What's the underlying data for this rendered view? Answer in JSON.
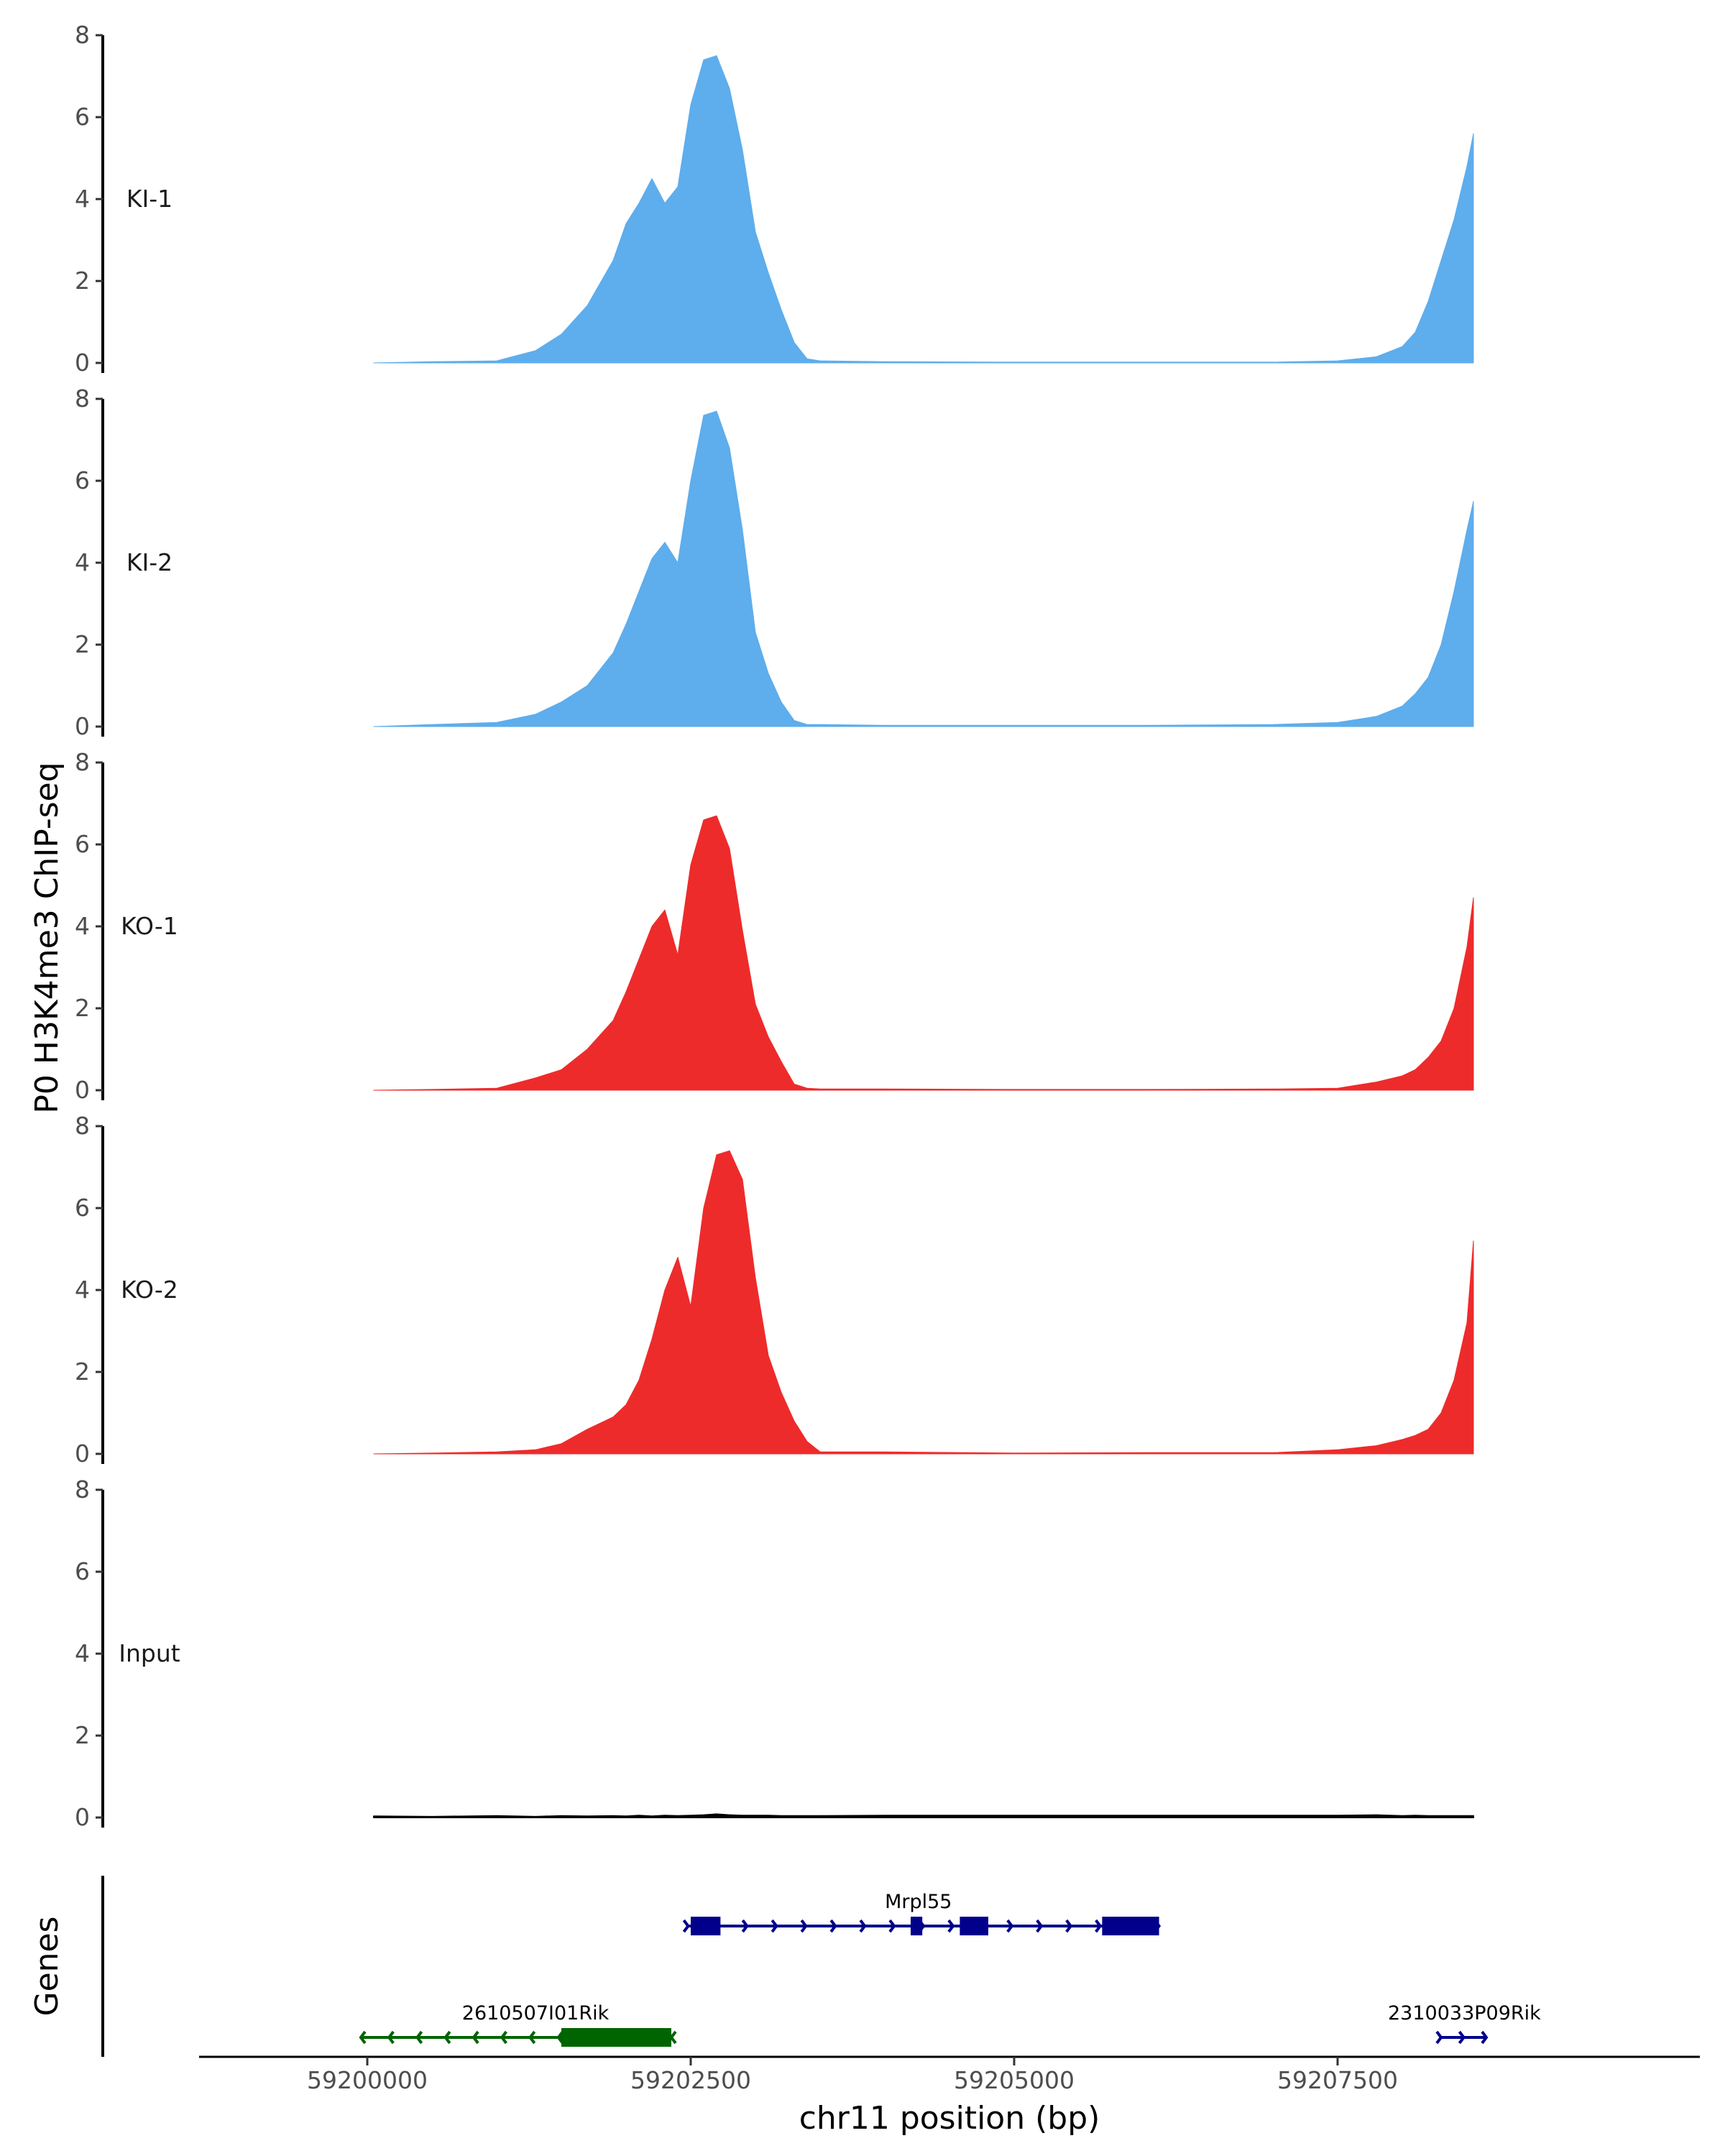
{
  "chart_data": {
    "type": "area",
    "ylabel": "P0 H3K4me3 ChIP-seq",
    "xlabel": "chr11 position (bp)",
    "genes_label": "Genes",
    "ylim": [
      0,
      8
    ],
    "yticks": [
      "0",
      "2",
      "4",
      "6",
      "8"
    ],
    "xlim": [
      59198700,
      59210300
    ],
    "xticks": [
      {
        "value": 59200000,
        "label": "59200000"
      },
      {
        "value": 59202500,
        "label": "59202500"
      },
      {
        "value": 59205000,
        "label": "59205000"
      },
      {
        "value": 59207500,
        "label": "59207500"
      }
    ],
    "x": [
      59200050,
      59200500,
      59201000,
      59201300,
      59201500,
      59201700,
      59201900,
      59202000,
      59202100,
      59202200,
      59202300,
      59202400,
      59202500,
      59202600,
      59202700,
      59202800,
      59202900,
      59203000,
      59203100,
      59203200,
      59203300,
      59203400,
      59203500,
      59204000,
      59205000,
      59206000,
      59207000,
      59207500,
      59207800,
      59208000,
      59208100,
      59208200,
      59208300,
      59208400,
      59208500,
      59208550
    ],
    "series": [
      {
        "name": "KI-1",
        "color": "#5EADEC",
        "values": [
          0,
          0.03,
          0.05,
          0.3,
          0.7,
          1.4,
          2.5,
          3.4,
          3.9,
          4.5,
          3.9,
          4.3,
          6.3,
          7.4,
          7.5,
          6.7,
          5.2,
          3.2,
          2.2,
          1.3,
          0.5,
          0.1,
          0.05,
          0.03,
          0.02,
          0.02,
          0.02,
          0.05,
          0.15,
          0.4,
          0.75,
          1.5,
          2.5,
          3.5,
          4.8,
          5.6
        ]
      },
      {
        "name": "KI-2",
        "color": "#5EADEC",
        "values": [
          0,
          0.05,
          0.1,
          0.3,
          0.6,
          1.0,
          1.8,
          2.5,
          3.3,
          4.1,
          4.5,
          4.0,
          6.0,
          7.6,
          7.7,
          6.8,
          4.8,
          2.3,
          1.3,
          0.6,
          0.15,
          0.05,
          0.05,
          0.03,
          0.03,
          0.03,
          0.05,
          0.1,
          0.25,
          0.5,
          0.8,
          1.2,
          2.0,
          3.3,
          4.8,
          5.5
        ]
      },
      {
        "name": "KO-1",
        "color": "#EE2B2B",
        "values": [
          0,
          0.02,
          0.05,
          0.3,
          0.5,
          1.0,
          1.7,
          2.4,
          3.2,
          4.0,
          4.4,
          3.3,
          5.5,
          6.6,
          6.7,
          5.9,
          3.9,
          2.1,
          1.3,
          0.7,
          0.15,
          0.05,
          0.03,
          0.03,
          0.02,
          0.02,
          0.03,
          0.05,
          0.2,
          0.35,
          0.5,
          0.8,
          1.2,
          2.0,
          3.5,
          4.7
        ]
      },
      {
        "name": "KO-2",
        "color": "#EE2B2B",
        "values": [
          0,
          0.02,
          0.05,
          0.1,
          0.25,
          0.6,
          0.9,
          1.2,
          1.8,
          2.8,
          4.0,
          4.8,
          3.6,
          6.0,
          7.3,
          7.4,
          6.7,
          4.3,
          2.4,
          1.5,
          0.8,
          0.3,
          0.05,
          0.05,
          0.02,
          0.03,
          0.03,
          0.1,
          0.2,
          0.35,
          0.45,
          0.6,
          1.0,
          1.8,
          3.2,
          5.2
        ]
      },
      {
        "name": "Input",
        "color": "#000000",
        "values": [
          0.03,
          0.02,
          0.04,
          0.02,
          0.04,
          0.03,
          0.04,
          0.03,
          0.05,
          0.03,
          0.05,
          0.04,
          0.05,
          0.06,
          0.08,
          0.06,
          0.05,
          0.05,
          0.05,
          0.04,
          0.04,
          0.04,
          0.04,
          0.05,
          0.05,
          0.05,
          0.05,
          0.05,
          0.06,
          0.04,
          0.05,
          0.04,
          0.04,
          0.04,
          0.04,
          0.04
        ]
      }
    ],
    "genes": [
      {
        "name": "Mrpl55",
        "strand": "+",
        "color": "#00008B",
        "row": 1,
        "start": 59202480,
        "end": 59206120,
        "label_pos": 59204260,
        "exons": [
          [
            59202500,
            59202730
          ],
          [
            59204200,
            59204290
          ],
          [
            59204580,
            59204800
          ],
          [
            59205680,
            59206120
          ]
        ]
      },
      {
        "name": "2610507I01Rik",
        "strand": "-",
        "color": "#006400",
        "row": 2,
        "start": 59199950,
        "end": 59202350,
        "label_pos": 59201300,
        "exons": [
          [
            59201500,
            59202350
          ]
        ]
      },
      {
        "name": "2310033P09Rik",
        "strand": "+",
        "color": "#00008B",
        "row": 2,
        "start": 59208300,
        "end": 59208650,
        "label_pos": 59208480,
        "exons": []
      }
    ]
  }
}
